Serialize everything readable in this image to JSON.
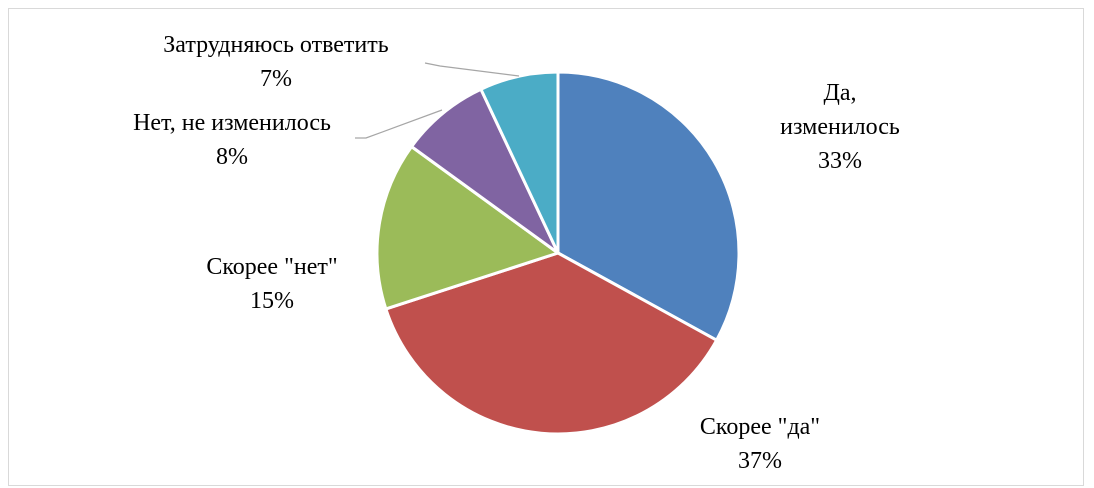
{
  "chart_data": {
    "type": "pie",
    "categories": [
      "Да, изменилось",
      "Скорее \"да\"",
      "Скорее \"нет\"",
      "Нет, не изменилось",
      "Затрудняюсь ответить"
    ],
    "values": [
      33,
      37,
      15,
      8,
      7
    ],
    "value_labels": [
      "33%",
      "37%",
      "15%",
      "8%",
      "7%"
    ],
    "colors": [
      "#4f81bd",
      "#c0504d",
      "#9bbb59",
      "#8064a2",
      "#4bacc6"
    ]
  }
}
